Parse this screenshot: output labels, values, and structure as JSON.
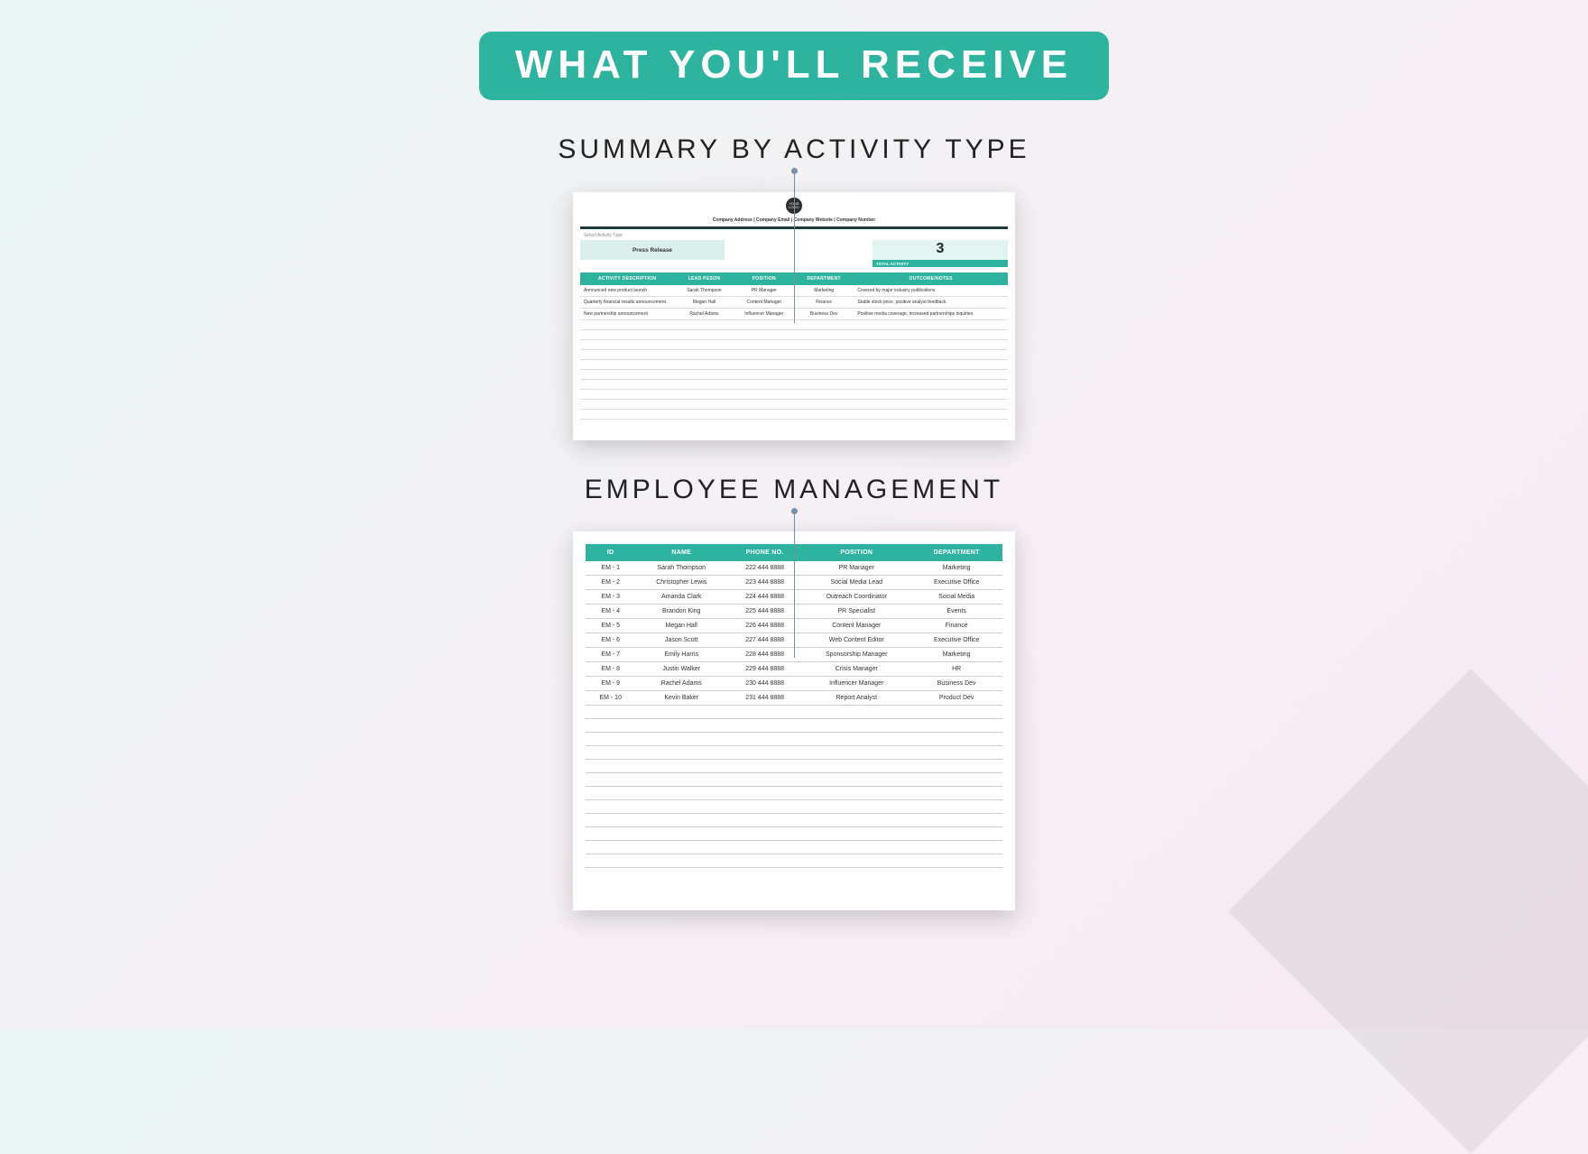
{
  "banner": "WHAT YOU'LL RECEIVE",
  "colors": {
    "accent": "#2db3a0",
    "accent_light": "#d9f0ed",
    "accent_lighter": "#e2f4f2",
    "divider_dark": "#1b3b3b",
    "connector": "#7a8fa8",
    "text": "#222222",
    "bg_gradient_start": "#e8f5f3",
    "bg_gradient_end": "#f5e8f2"
  },
  "section1": {
    "title": "SUMMARY BY ACTIVITY TYPE",
    "logo_text": "YOUR LOGO",
    "meta_line": "Company Address  |  Company Email  |  Company Website  |  Company Number",
    "select_label": "Select Activity Type",
    "selected_value": "Press Release",
    "total_number": "3",
    "total_label": "TOTAL ACTIVITY",
    "columns": [
      "ACTIVITY DESCRIPTION",
      "LEAD PESON",
      "POSITION",
      "DEPARTMENT",
      "OUTCOME/NOTES"
    ],
    "rows": [
      [
        "Announced new product launch",
        "Sarah Thompson",
        "PR Manager",
        "Marketing",
        "Covered by major industry publications"
      ],
      [
        "Quarterly financial results announcement",
        "Megan Hall",
        "Content Manager",
        "Finance",
        "Stable stock price, positive analyst feedback"
      ],
      [
        "New partnership announcement",
        "Rachel Adams",
        "Influencer Manager",
        "Business Dev",
        "Positive media coverage, increased partnerships inquiries"
      ]
    ],
    "empty_rows": 10
  },
  "section2": {
    "title": "EMPLOYEE MANAGEMENT",
    "columns": [
      "ID",
      "NAME",
      "PHONE NO.",
      "POSITION",
      "DEPARTMENT"
    ],
    "rows": [
      [
        "EM - 1",
        "Sarah Thompson",
        "222 444 8888",
        "PR Manager",
        "Marketing"
      ],
      [
        "EM - 2",
        "Christopher Lewis",
        "223 444 8888",
        "Social Media Lead",
        "Executive Office"
      ],
      [
        "EM - 3",
        "Amanda Clark",
        "224 444 8888",
        "Outreach Coordinator",
        "Social Media"
      ],
      [
        "EM - 4",
        "Brandon King",
        "225 444 8888",
        "PR Specialist",
        "Events"
      ],
      [
        "EM - 5",
        "Megan Hall",
        "226 444 8888",
        "Content Manager",
        "Finance"
      ],
      [
        "EM - 6",
        "Jason Scott",
        "227 444 8888",
        "Web Content Editor",
        "Executive Office"
      ],
      [
        "EM - 7",
        "Emily Harris",
        "228 444 8888",
        "Sponsorship Manager",
        "Marketing"
      ],
      [
        "EM - 8",
        "Justin Walker",
        "229 444 8888",
        "Crisis Manager",
        "HR"
      ],
      [
        "EM - 9",
        "Rachel Adams",
        "230 444 8888",
        "Influencer Manager",
        "Business Dev"
      ],
      [
        "EM - 10",
        "Kevin Baker",
        "231 444 8888",
        "Report Analyst",
        "Product Dev"
      ]
    ],
    "empty_rows": 12
  }
}
